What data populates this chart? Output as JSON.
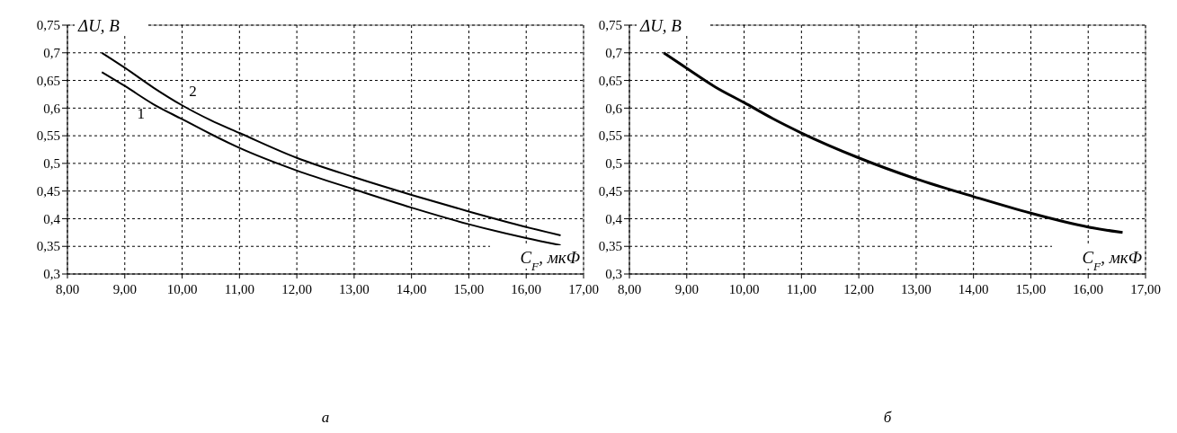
{
  "chart_data": [
    {
      "type": "line",
      "xlabel": "C$_{F}$, мкФ",
      "ylabel": "ΔU, В",
      "annotations": [
        "а"
      ],
      "grid": true,
      "line_style": "solid",
      "xlim": [
        8,
        17
      ],
      "xticks": [
        {
          "value": 8,
          "label": "8,00"
        },
        {
          "value": 9,
          "label": "9,00"
        },
        {
          "value": 10,
          "label": "10,00"
        },
        {
          "value": 11,
          "label": "11,00"
        },
        {
          "value": 12,
          "label": "12,00"
        },
        {
          "value": 13,
          "label": "13,00"
        },
        {
          "value": 14,
          "label": "14,00"
        },
        {
          "value": 15,
          "label": "15,00"
        },
        {
          "value": 16,
          "label": "16,00"
        },
        {
          "value": 17,
          "label": "17,00"
        }
      ],
      "ylim": [
        0.3,
        0.75
      ],
      "yticks": [
        {
          "value": 0.3,
          "label": "0,3"
        },
        {
          "value": 0.35,
          "label": "0,35"
        },
        {
          "value": 0.4,
          "label": "0,4"
        },
        {
          "value": 0.45,
          "label": "0,45"
        },
        {
          "value": 0.5,
          "label": "0,5"
        },
        {
          "value": 0.55,
          "label": "0,55"
        },
        {
          "value": 0.6,
          "label": "0,6"
        },
        {
          "value": 0.65,
          "label": "0,65"
        },
        {
          "value": 0.7,
          "label": "0,7"
        },
        {
          "value": 0.75,
          "label": "0,75"
        }
      ],
      "x": [
        8.6,
        9,
        9.5,
        10,
        10.5,
        11,
        12,
        13,
        14,
        15,
        16,
        16.6
      ],
      "series": [
        {
          "name": "1",
          "color": "#000000",
          "values": [
            0.665,
            0.64,
            0.607,
            0.58,
            0.553,
            0.528,
            0.487,
            0.453,
            0.42,
            0.39,
            0.365,
            0.352
          ]
        },
        {
          "name": "2",
          "color": "#000000",
          "values": [
            0.7,
            0.673,
            0.637,
            0.605,
            0.578,
            0.555,
            0.51,
            0.475,
            0.443,
            0.413,
            0.385,
            0.37
          ]
        }
      ]
    },
    {
      "type": "line",
      "xlabel": "C$_{F}$, мкФ",
      "ylabel": "ΔU, В",
      "annotations": [
        "б"
      ],
      "grid": true,
      "line_style": "solid",
      "xlim": [
        8,
        17
      ],
      "xticks": [
        {
          "value": 8,
          "label": "8,00"
        },
        {
          "value": 9,
          "label": "9,00"
        },
        {
          "value": 10,
          "label": "10,00"
        },
        {
          "value": 11,
          "label": "11,00"
        },
        {
          "value": 12,
          "label": "12,00"
        },
        {
          "value": 13,
          "label": "13,00"
        },
        {
          "value": 14,
          "label": "14,00"
        },
        {
          "value": 15,
          "label": "15,00"
        },
        {
          "value": 16,
          "label": "16,00"
        },
        {
          "value": 17,
          "label": "17,00"
        }
      ],
      "ylim": [
        0.3,
        0.75
      ],
      "yticks": [
        {
          "value": 0.3,
          "label": "0,3"
        },
        {
          "value": 0.35,
          "label": "0,35"
        },
        {
          "value": 0.4,
          "label": "0,4"
        },
        {
          "value": 0.45,
          "label": "0,45"
        },
        {
          "value": 0.5,
          "label": "0,5"
        },
        {
          "value": 0.55,
          "label": "0,55"
        },
        {
          "value": 0.6,
          "label": "0,6"
        },
        {
          "value": 0.65,
          "label": "0,65"
        },
        {
          "value": 0.7,
          "label": "0,7"
        },
        {
          "value": 0.75,
          "label": "0,75"
        }
      ],
      "x": [
        8.6,
        9,
        9.5,
        10,
        10.5,
        11,
        12,
        13,
        14,
        15,
        16,
        16.6
      ],
      "series": [
        {
          "color": "#000000",
          "values": [
            0.7,
            0.672,
            0.638,
            0.61,
            0.581,
            0.555,
            0.51,
            0.472,
            0.44,
            0.41,
            0.385,
            0.375
          ]
        }
      ]
    }
  ]
}
